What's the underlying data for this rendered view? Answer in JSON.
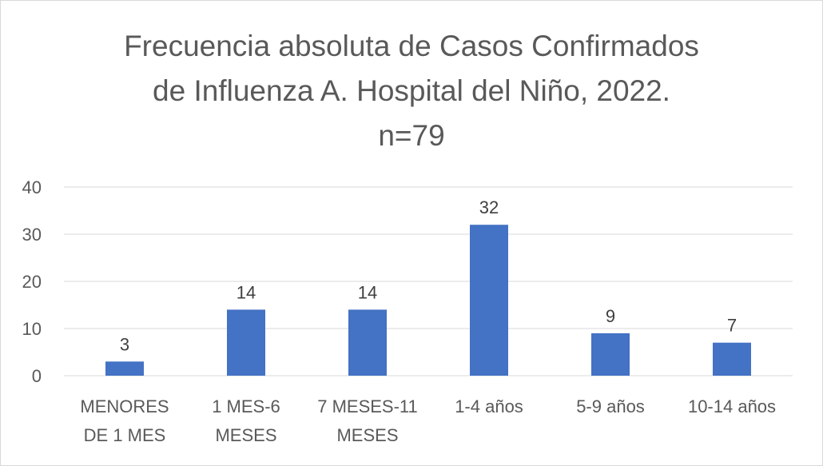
{
  "chart_data": {
    "type": "bar",
    "title_lines": [
      "Frecuencia absoluta de Casos Confirmados",
      "de Influenza A. Hospital del Niño, 2022.",
      "n=79"
    ],
    "categories": [
      [
        "MENORES",
        "DE 1 MES"
      ],
      [
        "1 MES-6",
        "MESES"
      ],
      [
        "7 MESES-11",
        "MESES"
      ],
      [
        "1-4 años"
      ],
      [
        "5-9 años"
      ],
      [
        "10-14 años"
      ]
    ],
    "values": [
      3,
      14,
      14,
      32,
      9,
      7
    ],
    "data_labels": [
      "3",
      "14",
      "14",
      "32",
      "9",
      "7"
    ],
    "ylim": [
      0,
      40
    ],
    "yticks": [
      0,
      10,
      20,
      30,
      40
    ],
    "grid": true,
    "legend": "none",
    "bar_color": "#4472c4",
    "grid_color": "#d9d9d9"
  }
}
